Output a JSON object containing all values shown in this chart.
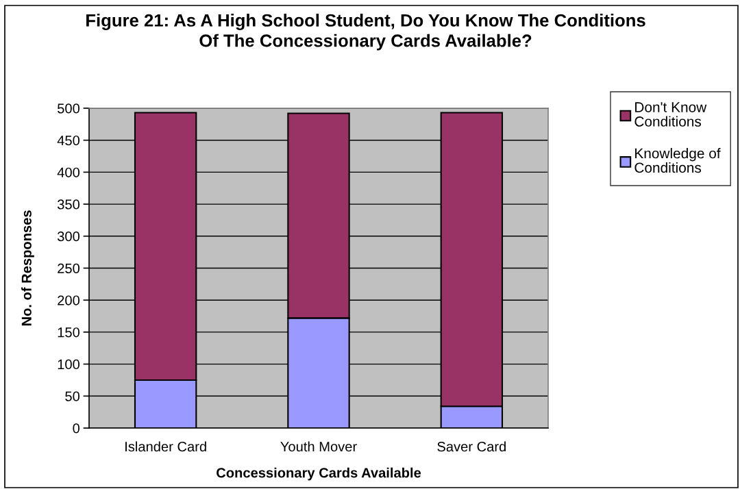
{
  "chart_data": {
    "type": "bar",
    "title": "Figure 21: As A High School Student, Do You Know The Conditions\nOf The Concessionary Cards Available?",
    "xlabel": "Concessionary Cards Available",
    "ylabel": "No. of Responses",
    "categories": [
      "Islander Card",
      "Youth Mover",
      "Saver Card"
    ],
    "series": [
      {
        "name": "Knowledge of Conditions",
        "color": "#9999ff",
        "values": [
          75,
          172,
          34
        ]
      },
      {
        "name": "Don't Know Conditions",
        "color": "#993366",
        "values": [
          418,
          320,
          459
        ]
      }
    ],
    "stacked": true,
    "ylim": [
      0,
      500
    ],
    "yticks": [
      0,
      50,
      100,
      150,
      200,
      250,
      300,
      350,
      400,
      450,
      500
    ],
    "grid": "y",
    "legend": "right"
  }
}
